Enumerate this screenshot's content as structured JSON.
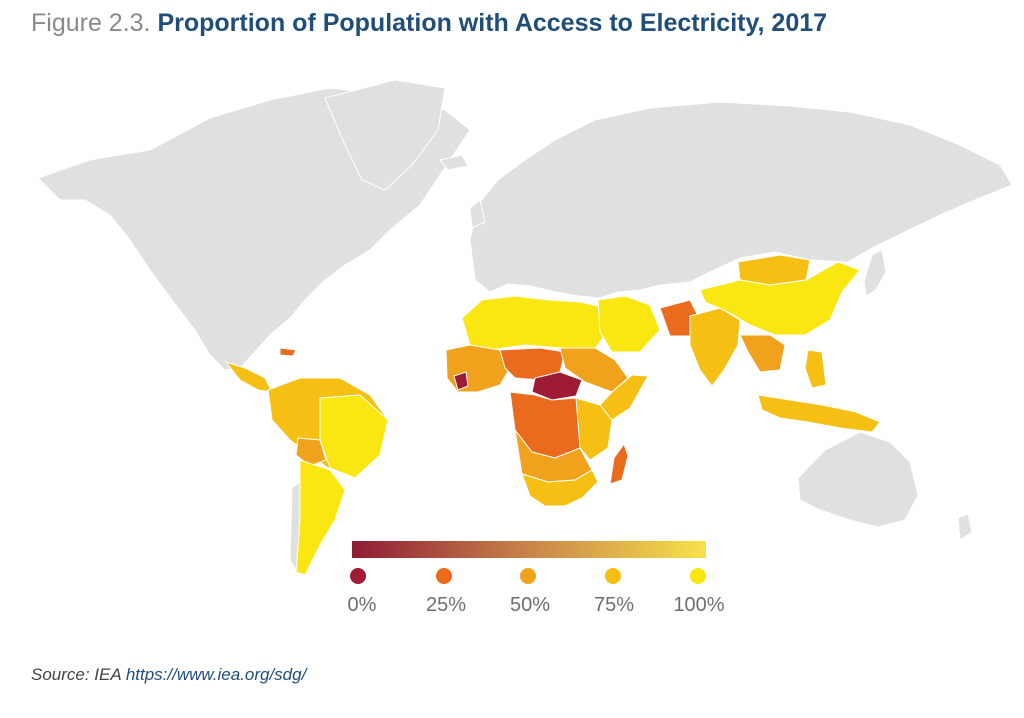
{
  "figure_number": "Figure 2.3.",
  "title": "Proportion of Population with Access to Electricity, 2017",
  "source_label": "Source: IEA",
  "source_url": "https://www.iea.org/sdg/",
  "colors": {
    "no_data": "#e0e0e0",
    "c0": "#9e1a35",
    "c25": "#ea6a1e",
    "c50": "#f0a21c",
    "c75": "#f5c013",
    "c100": "#fae712",
    "title": "#1f4e79",
    "border": "#ffffff"
  },
  "legend": {
    "stops": [
      {
        "label": "0%",
        "value": 0,
        "color": "#9e1a35"
      },
      {
        "label": "25%",
        "value": 25,
        "color": "#ea6a1e"
      },
      {
        "label": "50%",
        "value": 50,
        "color": "#f0a21c"
      },
      {
        "label": "75%",
        "value": 75,
        "color": "#f5c013"
      },
      {
        "label": "100%",
        "value": 100,
        "color": "#fae712"
      }
    ]
  }
}
